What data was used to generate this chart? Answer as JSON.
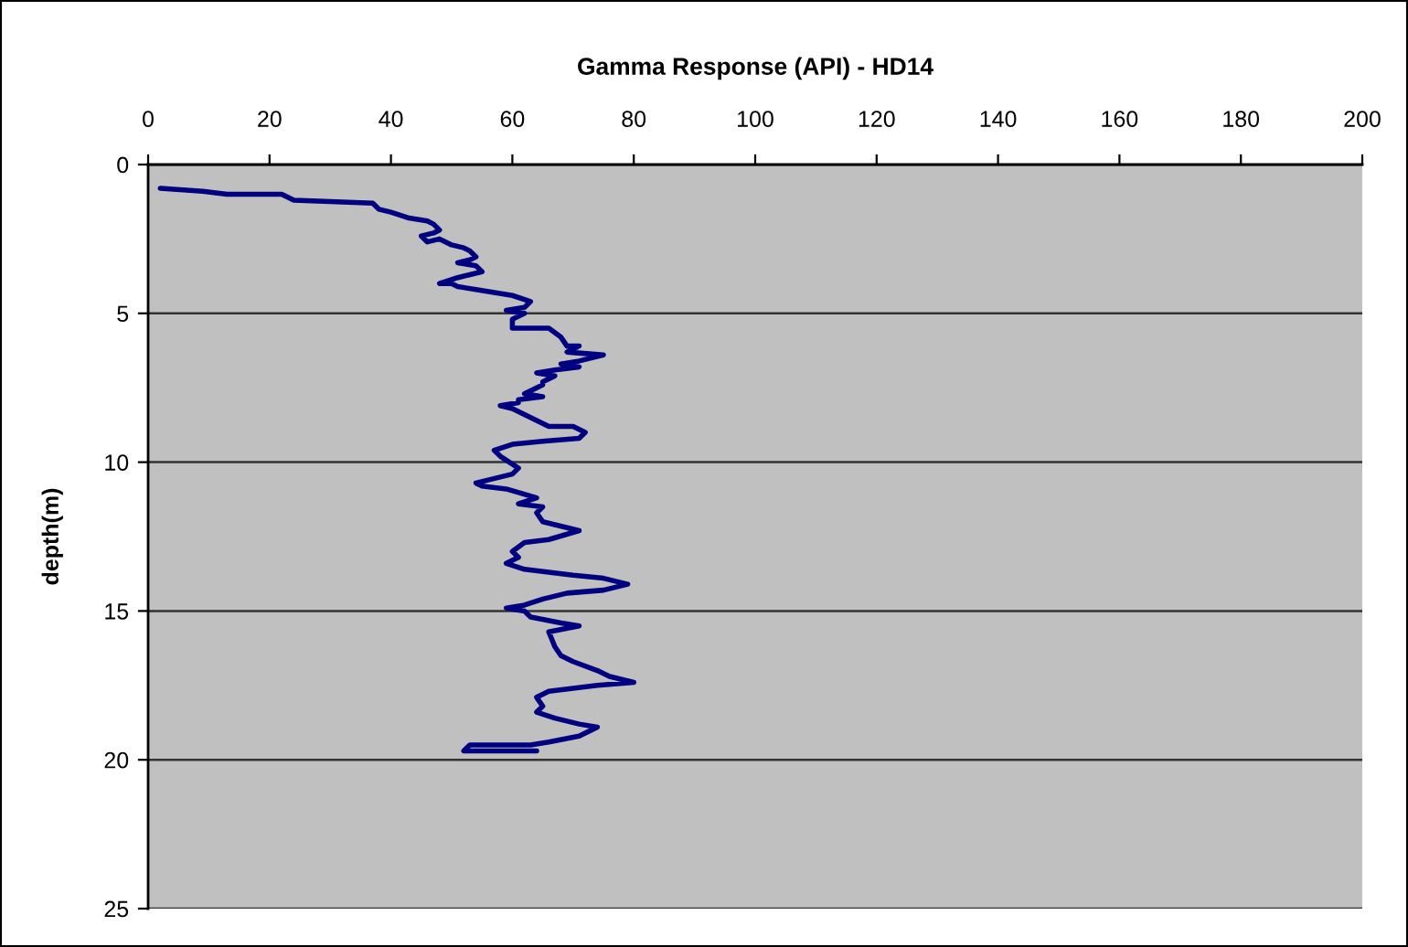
{
  "chart_data": {
    "type": "line",
    "title": "Gamma Response (API) - HD14",
    "ylabel": "depth(m)",
    "xlim": [
      0,
      200
    ],
    "xticks": [
      0,
      20,
      40,
      60,
      80,
      100,
      120,
      140,
      160,
      180,
      200
    ],
    "ylim": [
      25,
      0
    ],
    "yticks": [
      0,
      5,
      10,
      15,
      20,
      25
    ],
    "grid": "y",
    "x": [
      2,
      9,
      13,
      22,
      24,
      37,
      38,
      40,
      43,
      46,
      47,
      48,
      47,
      45,
      46,
      48,
      50,
      52,
      53,
      54,
      53,
      51,
      54,
      55,
      53,
      51,
      48,
      50,
      51,
      54,
      57,
      60,
      63,
      62,
      59,
      62,
      60,
      60,
      62,
      66,
      68,
      69,
      71,
      69,
      75,
      71,
      68,
      71,
      67,
      64,
      67,
      65,
      65,
      62,
      65,
      61,
      61,
      58,
      60,
      62,
      65,
      66,
      70,
      72,
      71,
      65,
      60,
      57,
      58,
      61,
      60,
      54,
      55,
      59,
      64,
      61,
      65,
      64,
      65,
      71,
      66,
      62,
      60,
      61,
      59,
      62,
      70,
      75,
      79,
      75,
      69,
      65,
      62,
      59,
      62,
      63,
      68,
      71,
      66,
      67,
      68,
      70,
      74,
      76,
      80,
      74,
      70,
      66,
      64,
      65,
      64,
      67,
      71,
      74,
      71,
      66,
      63,
      53,
      52,
      64
    ],
    "series": [
      {
        "color": "#000080",
        "values": [
          0.8,
          0.9,
          1.0,
          1.0,
          1.2,
          1.3,
          1.5,
          1.6,
          1.8,
          1.9,
          2.0,
          2.2,
          2.3,
          2.4,
          2.6,
          2.5,
          2.7,
          2.8,
          2.9,
          3.1,
          3.2,
          3.3,
          3.4,
          3.6,
          3.7,
          3.8,
          4.0,
          4.0,
          4.1,
          4.2,
          4.3,
          4.4,
          4.6,
          4.8,
          4.9,
          5.0,
          5.2,
          5.5,
          5.5,
          5.5,
          5.8,
          6.1,
          6.1,
          6.3,
          6.4,
          6.6,
          6.7,
          6.8,
          6.9,
          7.0,
          7.1,
          7.3,
          7.4,
          7.7,
          7.8,
          7.9,
          8.0,
          8.1,
          8.2,
          8.4,
          8.7,
          8.8,
          8.8,
          9.0,
          9.2,
          9.3,
          9.4,
          9.6,
          9.8,
          10.2,
          10.4,
          10.7,
          10.8,
          10.9,
          11.2,
          11.4,
          11.5,
          11.7,
          12.0,
          12.3,
          12.6,
          12.7,
          13.0,
          13.2,
          13.4,
          13.6,
          13.8,
          13.9,
          14.1,
          14.3,
          14.4,
          14.6,
          14.8,
          14.9,
          15.0,
          15.2,
          15.4,
          15.5,
          15.7,
          16.2,
          16.5,
          16.7,
          17.0,
          17.2,
          17.4,
          17.5,
          17.6,
          17.7,
          17.9,
          18.2,
          18.4,
          18.6,
          18.8,
          18.9,
          19.2,
          19.4,
          19.5,
          19.5,
          19.7,
          19.7
        ]
      }
    ]
  }
}
